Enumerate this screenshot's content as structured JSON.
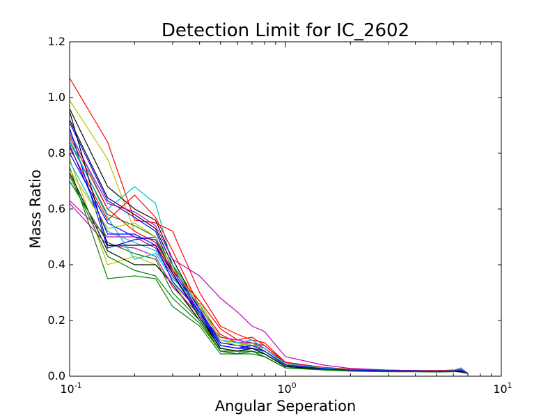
{
  "chart_data": {
    "type": "line",
    "title": "Detection Limit for IC_2602",
    "xlabel": "Angular Seperation",
    "ylabel": "Mass Ratio",
    "xscale": "log",
    "xlim": [
      0.1,
      10
    ],
    "ylim": [
      0.0,
      1.2
    ],
    "grid": false,
    "legend": "none",
    "x_ticks": [
      {
        "base": "10",
        "exp": "-1",
        "value": 0.1
      },
      {
        "base": "10",
        "exp": "0",
        "value": 1
      },
      {
        "base": "10",
        "exp": "1",
        "value": 10
      }
    ],
    "y_ticks": [
      "0.0",
      "0.2",
      "0.4",
      "0.6",
      "0.8",
      "1.0",
      "1.2"
    ],
    "x": [
      0.1,
      0.15,
      0.2,
      0.25,
      0.3,
      0.4,
      0.5,
      0.6,
      0.7,
      0.8,
      1.0,
      1.5,
      2.0,
      3.0,
      4.0,
      5.0,
      6.0,
      6.5,
      7.0
    ],
    "series": [
      {
        "color": "#ff0000",
        "values": [
          1.07,
          0.84,
          0.56,
          0.55,
          0.52,
          0.3,
          0.18,
          0.15,
          0.13,
          0.12,
          0.05,
          0.03,
          0.025,
          0.022,
          0.02,
          0.02,
          0.021,
          0.02,
          0.01
        ]
      },
      {
        "color": "#bfbf00",
        "values": [
          0.99,
          0.78,
          0.52,
          0.48,
          0.4,
          0.27,
          0.14,
          0.12,
          0.11,
          0.1,
          0.04,
          0.03,
          0.025,
          0.022,
          0.02,
          0.02,
          0.021,
          0.03,
          0.01
        ]
      },
      {
        "color": "#000000",
        "values": [
          0.96,
          0.68,
          0.6,
          0.56,
          0.42,
          0.24,
          0.11,
          0.1,
          0.11,
          0.09,
          0.04,
          0.028,
          0.022,
          0.02,
          0.02,
          0.018,
          0.019,
          0.018,
          0.01
        ]
      },
      {
        "color": "#000000",
        "values": [
          0.92,
          0.64,
          0.58,
          0.53,
          0.4,
          0.22,
          0.1,
          0.09,
          0.1,
          0.08,
          0.035,
          0.026,
          0.021,
          0.019,
          0.019,
          0.017,
          0.018,
          0.017,
          0.01
        ]
      },
      {
        "color": "#0000ff",
        "values": [
          0.91,
          0.63,
          0.57,
          0.52,
          0.38,
          0.23,
          0.12,
          0.11,
          0.1,
          0.09,
          0.04,
          0.027,
          0.022,
          0.02,
          0.019,
          0.018,
          0.019,
          0.02,
          0.01
        ]
      },
      {
        "color": "#00bfbf",
        "values": [
          0.88,
          0.6,
          0.68,
          0.62,
          0.4,
          0.25,
          0.09,
          0.08,
          0.12,
          0.08,
          0.04,
          0.026,
          0.022,
          0.019,
          0.018,
          0.018,
          0.02,
          0.03,
          0.01
        ]
      },
      {
        "color": "#bf00bf",
        "values": [
          0.87,
          0.62,
          0.59,
          0.54,
          0.42,
          0.36,
          0.28,
          0.23,
          0.18,
          0.16,
          0.07,
          0.04,
          0.028,
          0.022,
          0.02,
          0.02,
          0.022,
          0.02,
          0.01
        ]
      },
      {
        "color": "#008000",
        "values": [
          0.84,
          0.58,
          0.54,
          0.5,
          0.37,
          0.21,
          0.1,
          0.09,
          0.09,
          0.08,
          0.035,
          0.025,
          0.02,
          0.018,
          0.018,
          0.017,
          0.018,
          0.025,
          0.01
        ]
      },
      {
        "color": "#ff0000",
        "values": [
          0.82,
          0.56,
          0.65,
          0.57,
          0.45,
          0.25,
          0.15,
          0.12,
          0.12,
          0.1,
          0.045,
          0.03,
          0.024,
          0.021,
          0.02,
          0.019,
          0.02,
          0.02,
          0.01
        ]
      },
      {
        "color": "#0000ff",
        "values": [
          0.8,
          0.55,
          0.5,
          0.49,
          0.37,
          0.22,
          0.11,
          0.1,
          0.1,
          0.09,
          0.04,
          0.027,
          0.022,
          0.02,
          0.019,
          0.018,
          0.019,
          0.02,
          0.01
        ]
      },
      {
        "color": "#bfbf00",
        "values": [
          0.78,
          0.4,
          0.43,
          0.4,
          0.34,
          0.2,
          0.1,
          0.09,
          0.1,
          0.08,
          0.035,
          0.025,
          0.02,
          0.018,
          0.018,
          0.017,
          0.02,
          0.02,
          0.01
        ]
      },
      {
        "color": "#00bfbf",
        "values": [
          0.77,
          0.52,
          0.48,
          0.45,
          0.36,
          0.22,
          0.12,
          0.11,
          0.11,
          0.09,
          0.04,
          0.026,
          0.021,
          0.019,
          0.018,
          0.018,
          0.019,
          0.02,
          0.01
        ]
      },
      {
        "color": "#008000",
        "values": [
          0.75,
          0.35,
          0.36,
          0.35,
          0.25,
          0.18,
          0.08,
          0.08,
          0.08,
          0.07,
          0.03,
          0.022,
          0.018,
          0.016,
          0.016,
          0.015,
          0.016,
          0.02,
          0.01
        ]
      },
      {
        "color": "#000000",
        "values": [
          0.73,
          0.45,
          0.4,
          0.4,
          0.33,
          0.2,
          0.09,
          0.08,
          0.09,
          0.07,
          0.03,
          0.024,
          0.02,
          0.018,
          0.017,
          0.016,
          0.017,
          0.015,
          0.01
        ]
      },
      {
        "color": "#bf00bf",
        "values": [
          0.63,
          0.5,
          0.5,
          0.46,
          0.36,
          0.23,
          0.13,
          0.12,
          0.12,
          0.1,
          0.05,
          0.03,
          0.023,
          0.02,
          0.019,
          0.018,
          0.02,
          0.025,
          0.01
        ]
      },
      {
        "color": "#bf00bf",
        "values": [
          0.62,
          0.47,
          0.46,
          0.43,
          0.32,
          0.22,
          0.14,
          0.13,
          0.12,
          0.11,
          0.05,
          0.03,
          0.024,
          0.021,
          0.02,
          0.019,
          0.02,
          0.02,
          0.01
        ]
      },
      {
        "color": "#ff0000",
        "values": [
          0.86,
          0.6,
          0.52,
          0.48,
          0.38,
          0.27,
          0.17,
          0.13,
          0.14,
          0.11,
          0.05,
          0.032,
          0.025,
          0.021,
          0.02,
          0.02,
          0.022,
          0.02,
          0.01
        ]
      },
      {
        "color": "#008000",
        "values": [
          0.7,
          0.48,
          0.44,
          0.42,
          0.3,
          0.2,
          0.09,
          0.09,
          0.09,
          0.08,
          0.035,
          0.024,
          0.02,
          0.018,
          0.017,
          0.016,
          0.018,
          0.02,
          0.01
        ]
      },
      {
        "color": "#0000ff",
        "values": [
          0.89,
          0.46,
          0.49,
          0.5,
          0.39,
          0.24,
          0.12,
          0.11,
          0.12,
          0.09,
          0.04,
          0.028,
          0.022,
          0.02,
          0.019,
          0.018,
          0.02,
          0.02,
          0.01
        ]
      },
      {
        "color": "#00bfbf",
        "values": [
          0.85,
          0.57,
          0.42,
          0.44,
          0.35,
          0.26,
          0.13,
          0.12,
          0.13,
          0.1,
          0.045,
          0.03,
          0.023,
          0.02,
          0.019,
          0.018,
          0.02,
          0.02,
          0.01
        ]
      },
      {
        "color": "#000000",
        "values": [
          0.95,
          0.47,
          0.47,
          0.47,
          0.37,
          0.21,
          0.1,
          0.09,
          0.1,
          0.08,
          0.035,
          0.025,
          0.021,
          0.019,
          0.018,
          0.017,
          0.018,
          0.02,
          0.01
        ]
      },
      {
        "color": "#bfbf00",
        "values": [
          0.74,
          0.53,
          0.55,
          0.5,
          0.39,
          0.25,
          0.13,
          0.11,
          0.12,
          0.09,
          0.04,
          0.027,
          0.022,
          0.02,
          0.019,
          0.018,
          0.02,
          0.02,
          0.01
        ]
      },
      {
        "color": "#008000",
        "values": [
          0.72,
          0.43,
          0.38,
          0.36,
          0.28,
          0.19,
          0.09,
          0.08,
          0.09,
          0.07,
          0.03,
          0.023,
          0.019,
          0.017,
          0.017,
          0.016,
          0.017,
          0.02,
          0.01
        ]
      },
      {
        "color": "#0000ff",
        "values": [
          0.83,
          0.51,
          0.51,
          0.47,
          0.34,
          0.23,
          0.11,
          0.1,
          0.11,
          0.09,
          0.04,
          0.027,
          0.022,
          0.02,
          0.019,
          0.018,
          0.019,
          0.02,
          0.01
        ]
      }
    ]
  }
}
